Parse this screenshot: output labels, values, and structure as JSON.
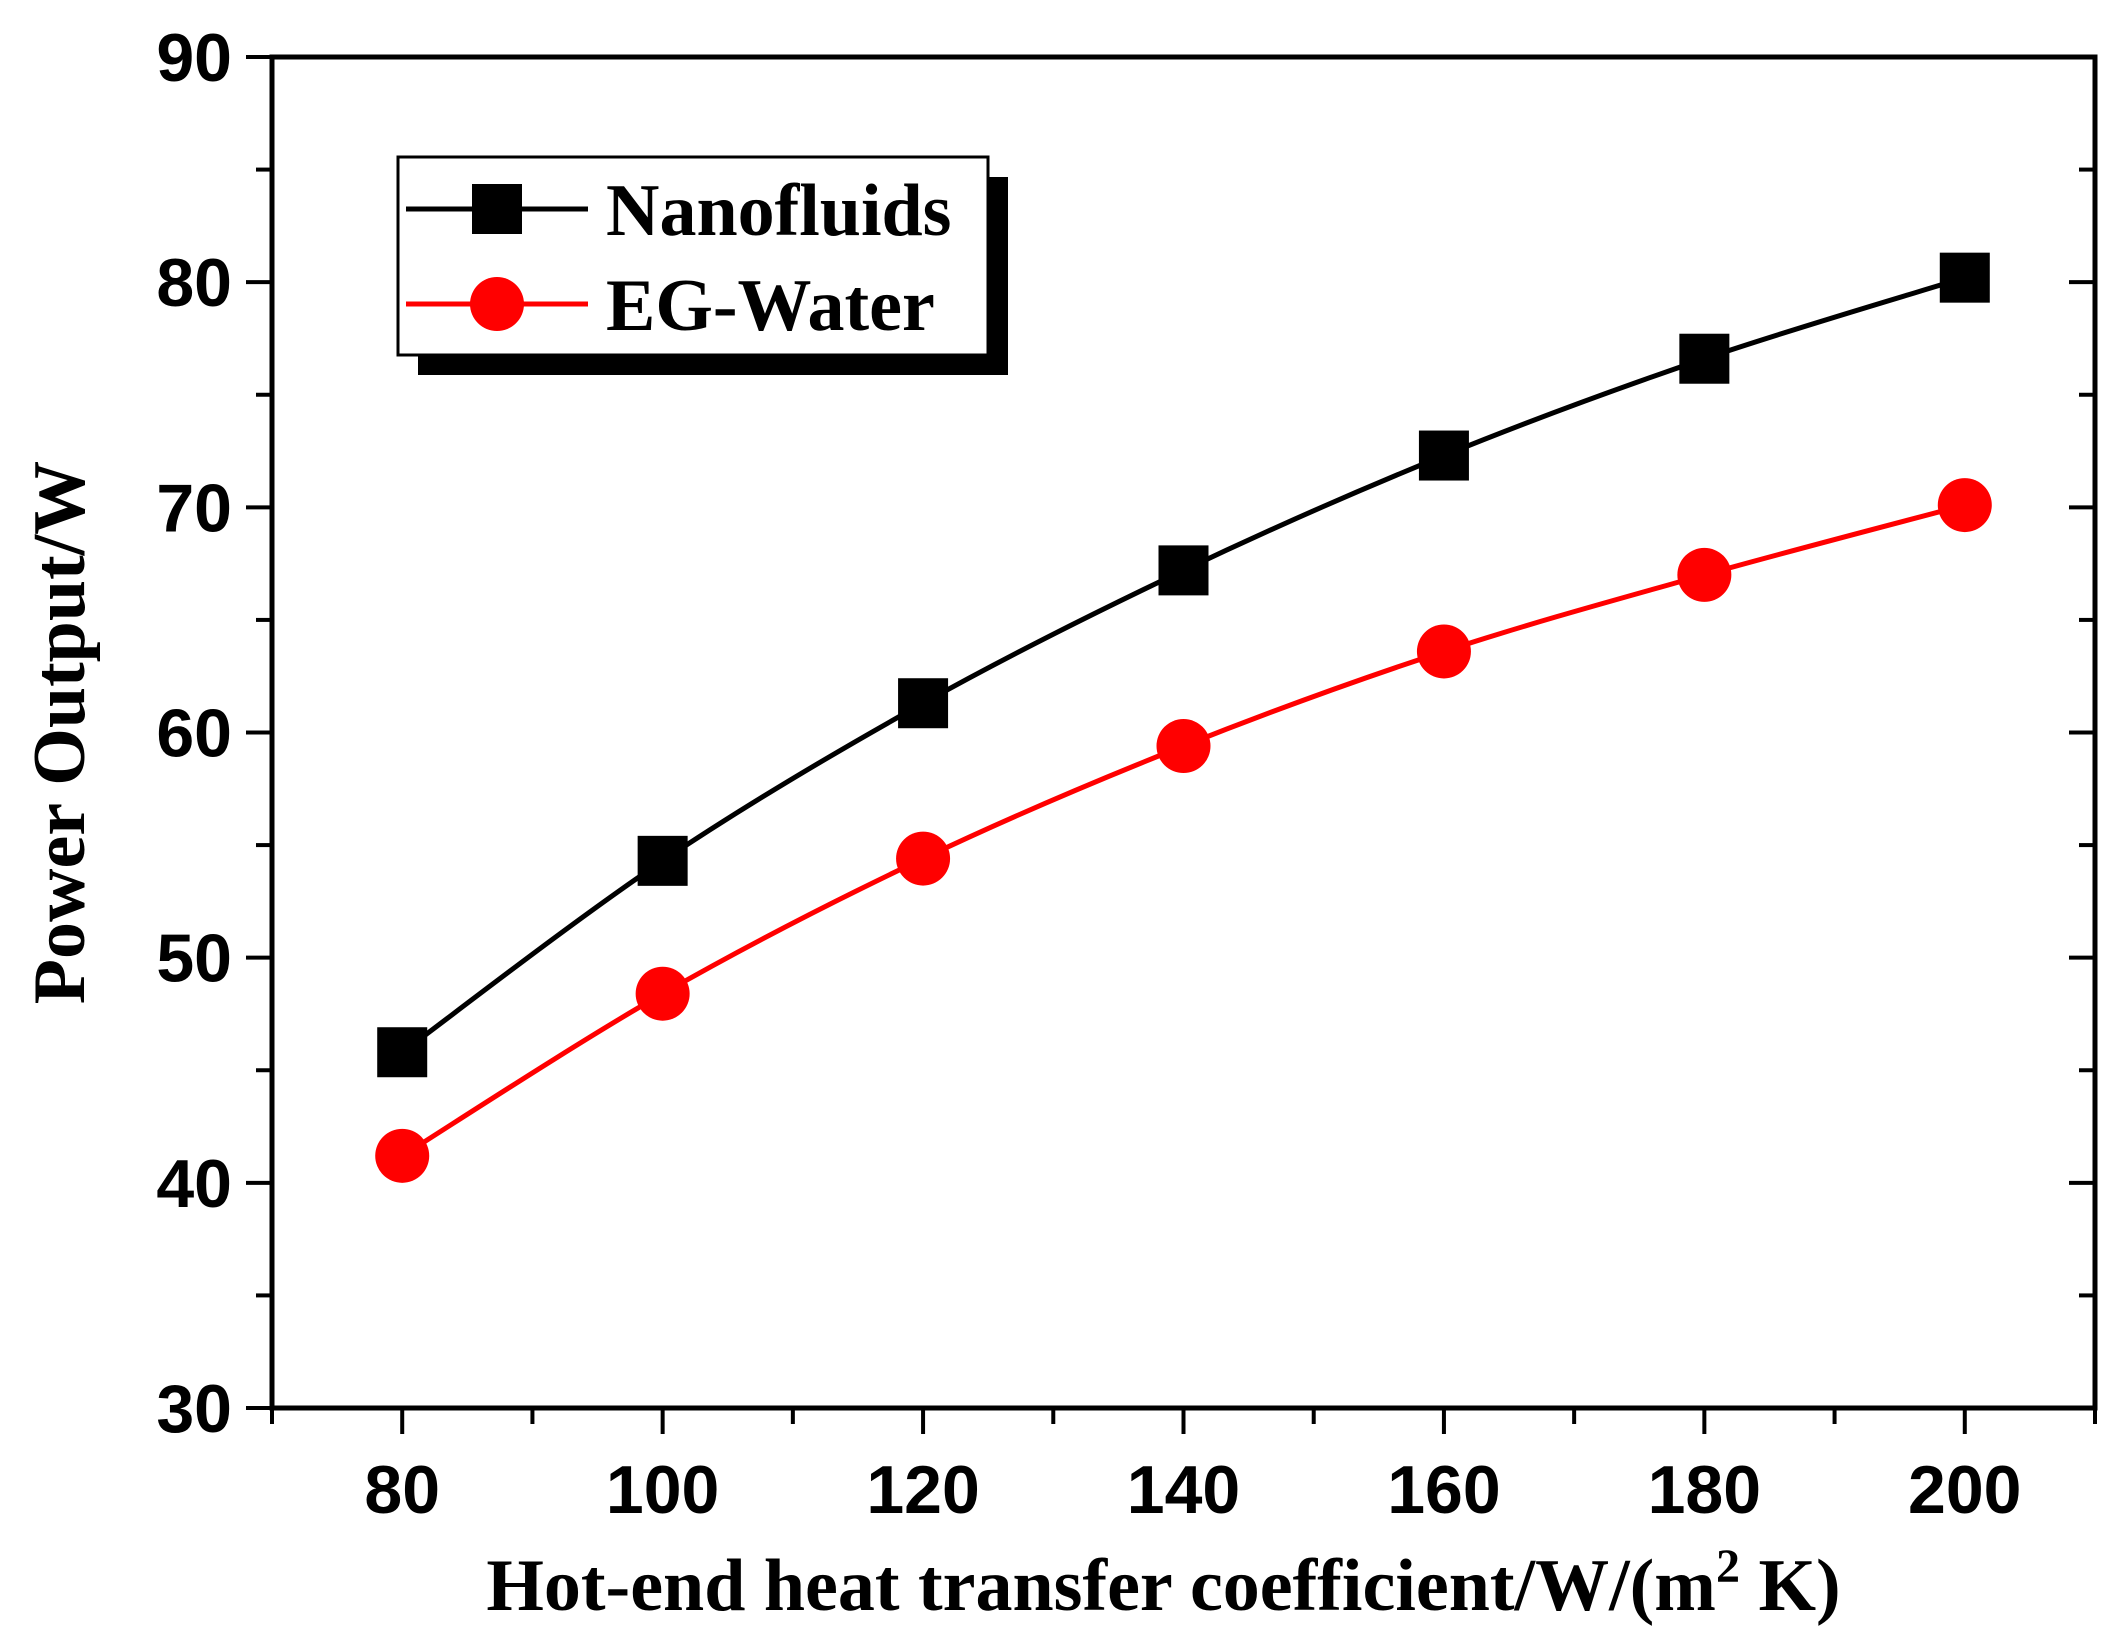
{
  "chart_data": {
    "type": "line",
    "title": "",
    "xlabel": "Hot-end heat transfer coefficient/W/(m",
    "xlabel_sup": "2",
    "xlabel_tail": " K)",
    "ylabel": "Power Output/W",
    "xlim": [
      70,
      210
    ],
    "ylim": [
      30,
      90
    ],
    "x_ticks": [
      80,
      100,
      120,
      140,
      160,
      180,
      200
    ],
    "x_minor_ticks": [
      70,
      90,
      110,
      130,
      150,
      170,
      190,
      210
    ],
    "y_ticks": [
      30,
      40,
      50,
      60,
      70,
      80,
      90
    ],
    "y_minor_ticks": [
      35,
      45,
      55,
      65,
      75,
      85
    ],
    "legend_position": "top-left",
    "series": [
      {
        "name": "Nanofluids",
        "marker": "square",
        "color": "#000000",
        "x": [
          80,
          100,
          120,
          140,
          160,
          180,
          200
        ],
        "values": [
          45.8,
          54.3,
          61.3,
          67.2,
          72.3,
          76.6,
          80.2
        ]
      },
      {
        "name": "EG-Water",
        "marker": "circle",
        "color": "#ff0000",
        "x": [
          80,
          100,
          120,
          140,
          160,
          180,
          200
        ],
        "values": [
          41.2,
          48.4,
          54.4,
          59.4,
          63.6,
          67.0,
          70.1
        ]
      }
    ]
  }
}
